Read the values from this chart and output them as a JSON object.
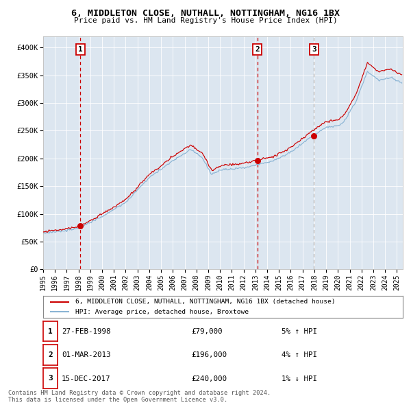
{
  "title": "6, MIDDLETON CLOSE, NUTHALL, NOTTINGHAM, NG16 1BX",
  "subtitle": "Price paid vs. HM Land Registry's House Price Index (HPI)",
  "background_color": "#dce6f0",
  "plot_bg_color": "#dce6f0",
  "hpi_color": "#8ab4d4",
  "price_color": "#cc0000",
  "sale_marker_color": "#cc0000",
  "vline_sale_color": "#cc0000",
  "vline_sale3_color": "#aaaaaa",
  "xlim_start": 1995.0,
  "xlim_end": 2025.5,
  "ylim_min": 0,
  "ylim_max": 420000,
  "yticks": [
    0,
    50000,
    100000,
    150000,
    200000,
    250000,
    300000,
    350000,
    400000
  ],
  "ytick_labels": [
    "£0",
    "£50K",
    "£100K",
    "£150K",
    "£200K",
    "£250K",
    "£300K",
    "£350K",
    "£400K"
  ],
  "xticks": [
    1995,
    1996,
    1997,
    1998,
    1999,
    2000,
    2001,
    2002,
    2003,
    2004,
    2005,
    2006,
    2007,
    2008,
    2009,
    2010,
    2011,
    2012,
    2013,
    2014,
    2015,
    2016,
    2017,
    2018,
    2019,
    2020,
    2021,
    2022,
    2023,
    2024,
    2025
  ],
  "sale1_date": 1998.15,
  "sale1_price": 79000,
  "sale1_label": "1",
  "sale2_date": 2013.17,
  "sale2_price": 196000,
  "sale2_label": "2",
  "sale3_date": 2017.96,
  "sale3_price": 240000,
  "sale3_label": "3",
  "legend_label_red": "6, MIDDLETON CLOSE, NUTHALL, NOTTINGHAM, NG16 1BX (detached house)",
  "legend_label_blue": "HPI: Average price, detached house, Broxtowe",
  "table_entries": [
    {
      "num": "1",
      "date": "27-FEB-1998",
      "price": "£79,000",
      "hpi": "5% ↑ HPI"
    },
    {
      "num": "2",
      "date": "01-MAR-2013",
      "price": "£196,000",
      "hpi": "4% ↑ HPI"
    },
    {
      "num": "3",
      "date": "15-DEC-2017",
      "price": "£240,000",
      "hpi": "1% ↓ HPI"
    }
  ],
  "footer": "Contains HM Land Registry data © Crown copyright and database right 2024.\nThis data is licensed under the Open Government Licence v3.0."
}
